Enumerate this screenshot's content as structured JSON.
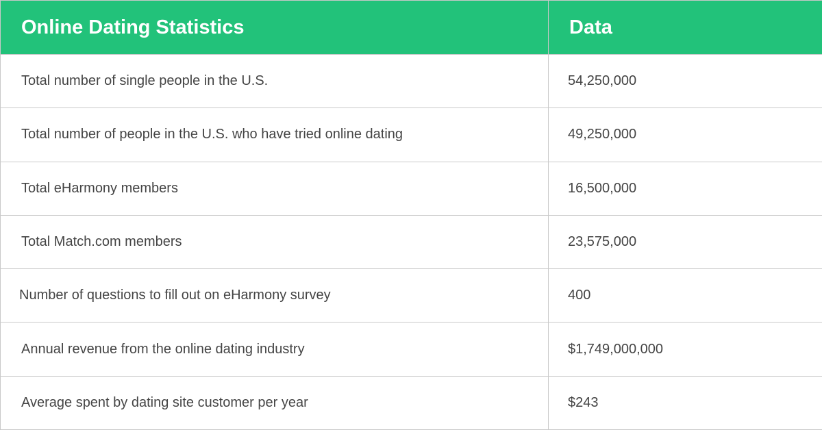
{
  "colors": {
    "header_background": "#22c27a",
    "header_text": "#ffffff",
    "body_text": "#444444",
    "grid_lines": "#c9c9c9"
  },
  "table": {
    "headers": [
      "Online Dating Statistics",
      "Data"
    ],
    "rows": [
      [
        "Total number of single people in the U.S.",
        "54,250,000"
      ],
      [
        "Total number of people in the U.S. who have tried online dating",
        "49,250,000"
      ],
      [
        "Total eHarmony members",
        "16,500,000"
      ],
      [
        "Total Match.com members",
        "23,575,000"
      ],
      [
        "Number of questions to fill out on eHarmony survey",
        "400"
      ],
      [
        "Annual revenue from the online dating industry",
        "$1,749,000,000"
      ],
      [
        "Average spent by dating site customer per year",
        "$243"
      ]
    ]
  }
}
